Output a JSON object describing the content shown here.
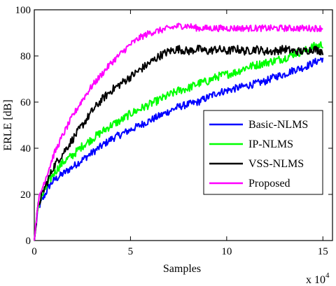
{
  "chart_data": {
    "type": "line",
    "xlabel": "Samples",
    "ylabel": "ERLE [dB]",
    "x_multiplier_label": "x 10",
    "x_multiplier_exp": "4",
    "xlim": [
      0,
      15.5
    ],
    "ylim": [
      0,
      100
    ],
    "xticks": [
      0,
      5,
      10,
      15
    ],
    "yticks": [
      0,
      20,
      40,
      60,
      80,
      100
    ],
    "grid": false,
    "legend_position": "center-right",
    "series": [
      {
        "name": "Basic-NLMS",
        "color": "#0000ff",
        "x": [
          0,
          0.2,
          0.5,
          0.8,
          1,
          1.5,
          2,
          2.5,
          3,
          3.5,
          4,
          4.5,
          5,
          5.5,
          6,
          6.5,
          7,
          7.5,
          8,
          8.5,
          9,
          9.5,
          10,
          10.5,
          11,
          11.5,
          12,
          12.5,
          13,
          13.5,
          14,
          14.5,
          15
        ],
        "values": [
          0,
          14,
          19,
          24,
          26,
          29,
          32,
          35,
          38,
          41,
          44,
          46,
          48,
          50,
          52,
          54,
          56,
          58,
          59,
          60,
          62,
          64,
          65,
          66,
          67,
          68,
          69,
          71,
          72,
          74,
          75,
          77,
          79
        ]
      },
      {
        "name": "IP-NLMS",
        "color": "#00ff00",
        "x": [
          0,
          0.2,
          0.5,
          0.8,
          1,
          1.5,
          2,
          2.5,
          3,
          3.5,
          4,
          4.5,
          5,
          5.5,
          6,
          6.5,
          7,
          7.5,
          8,
          8.5,
          9,
          9.5,
          10,
          10.5,
          11,
          11.5,
          12,
          12.5,
          13,
          13.5,
          14,
          14.5,
          15
        ],
        "values": [
          0,
          15,
          21,
          26,
          29,
          34,
          37,
          41,
          44,
          47,
          50,
          52,
          55,
          57,
          59,
          61,
          63,
          65,
          66,
          68,
          69,
          71,
          72,
          73,
          75,
          76,
          77,
          78,
          79,
          81,
          82,
          84,
          85
        ]
      },
      {
        "name": "VSS-NLMS",
        "color": "#000000",
        "x": [
          0,
          0.2,
          0.5,
          0.8,
          1,
          1.5,
          2,
          2.5,
          3,
          3.5,
          4,
          4.5,
          5,
          5.5,
          6,
          6.5,
          7,
          7.5,
          8,
          8.5,
          9,
          9.5,
          10,
          10.5,
          11,
          11.5,
          12,
          12.5,
          13,
          13.5,
          14,
          14.5,
          15
        ],
        "values": [
          0,
          15,
          22,
          28,
          32,
          38,
          44,
          50,
          56,
          61,
          65,
          68,
          71,
          74,
          77,
          80,
          82,
          83,
          82,
          83,
          82,
          83,
          82,
          83,
          82,
          83,
          82,
          82,
          83,
          82,
          82,
          83,
          82
        ]
      },
      {
        "name": "Proposed",
        "color": "#ff00ff",
        "x": [
          0,
          0.2,
          0.5,
          0.8,
          1,
          1.5,
          2,
          2.5,
          3,
          3.5,
          4,
          4.5,
          5,
          5.5,
          6,
          6.5,
          7,
          7.5,
          8,
          8.5,
          9,
          9.5,
          10,
          10.5,
          11,
          11.5,
          12,
          12.5,
          13,
          13.5,
          14,
          14.5,
          15
        ],
        "values": [
          0,
          17,
          25,
          32,
          37,
          46,
          54,
          61,
          67,
          72,
          77,
          81,
          85,
          88,
          90,
          91,
          92,
          93,
          93,
          92,
          92,
          92,
          92,
          92,
          92,
          92,
          92,
          92,
          92,
          92,
          92,
          92,
          92
        ]
      }
    ]
  }
}
